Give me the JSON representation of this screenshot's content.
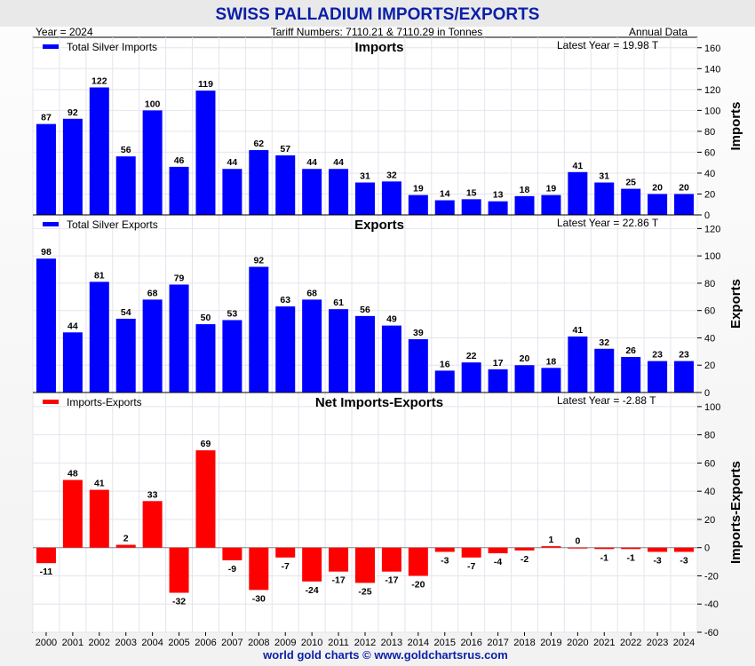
{
  "header": {
    "title": "SWISS PALLADIUM IMPORTS/EXPORTS",
    "year_label": "Year = 2024",
    "tariff_label": "Tariff Numbers: 7110.21 & 7110.29 in Tonnes",
    "frequency_label": "Annual Data"
  },
  "footer": {
    "credit": "world gold charts © www.goldchartsrus.com"
  },
  "colors": {
    "title": "#0b1fa8",
    "bar_blue": "#0000ff",
    "bar_red": "#ff0000",
    "footer": "#0b1fa8"
  },
  "chart_data": [
    {
      "type": "bar",
      "title": "Imports",
      "ylabel": "Imports",
      "legend": "Total Silver Imports",
      "latest": "Latest Year = 19.98 T",
      "ylim": [
        0,
        170
      ],
      "yticks": [
        0,
        20,
        40,
        60,
        80,
        100,
        120,
        140,
        160
      ],
      "categories": [
        "2000",
        "2001",
        "2002",
        "2003",
        "2004",
        "2005",
        "2006",
        "2007",
        "2008",
        "2009",
        "2010",
        "2011",
        "2012",
        "2013",
        "2014",
        "2015",
        "2016",
        "2017",
        "2018",
        "2019",
        "2020",
        "2021",
        "2022",
        "2023",
        "2024"
      ],
      "values": [
        87,
        92,
        122,
        56,
        100,
        46,
        119,
        44,
        62,
        57,
        44,
        44,
        31,
        32,
        19,
        14,
        15,
        13,
        18,
        19,
        41,
        31,
        25,
        20,
        20
      ],
      "color": "#0000ff"
    },
    {
      "type": "bar",
      "title": "Exports",
      "ylabel": "Exports",
      "legend": "Total Silver Exports",
      "latest": "Latest Year = 22.86 T",
      "ylim": [
        0,
        130
      ],
      "yticks": [
        0,
        20,
        40,
        60,
        80,
        100,
        120
      ],
      "categories": [
        "2000",
        "2001",
        "2002",
        "2003",
        "2004",
        "2005",
        "2006",
        "2007",
        "2008",
        "2009",
        "2010",
        "2011",
        "2012",
        "2013",
        "2014",
        "2015",
        "2016",
        "2017",
        "2018",
        "2019",
        "2020",
        "2021",
        "2022",
        "2023",
        "2024"
      ],
      "values": [
        98,
        44,
        81,
        54,
        68,
        79,
        50,
        53,
        92,
        63,
        68,
        61,
        56,
        49,
        39,
        16,
        22,
        17,
        20,
        18,
        41,
        32,
        26,
        23,
        23
      ],
      "color": "#0000ff"
    },
    {
      "type": "bar",
      "title": "Net Imports-Exports",
      "ylabel": "Imports-Exports",
      "legend": "Imports-Exports",
      "latest": "Latest Year = -2.88 T",
      "ylim": [
        -60,
        110
      ],
      "yticks": [
        -60,
        -40,
        -20,
        0,
        20,
        40,
        60,
        80,
        100
      ],
      "categories": [
        "2000",
        "2001",
        "2002",
        "2003",
        "2004",
        "2005",
        "2006",
        "2007",
        "2008",
        "2009",
        "2010",
        "2011",
        "2012",
        "2013",
        "2014",
        "2015",
        "2016",
        "2017",
        "2018",
        "2019",
        "2020",
        "2021",
        "2022",
        "2023",
        "2024"
      ],
      "values": [
        -11,
        48,
        41,
        2,
        33,
        -32,
        69,
        -9,
        -30,
        -7,
        -24,
        -17,
        -25,
        -17,
        -20,
        -3,
        -7,
        -4,
        -2,
        1,
        0,
        -1,
        -1,
        -3,
        -3
      ],
      "color": "#ff0000"
    }
  ]
}
